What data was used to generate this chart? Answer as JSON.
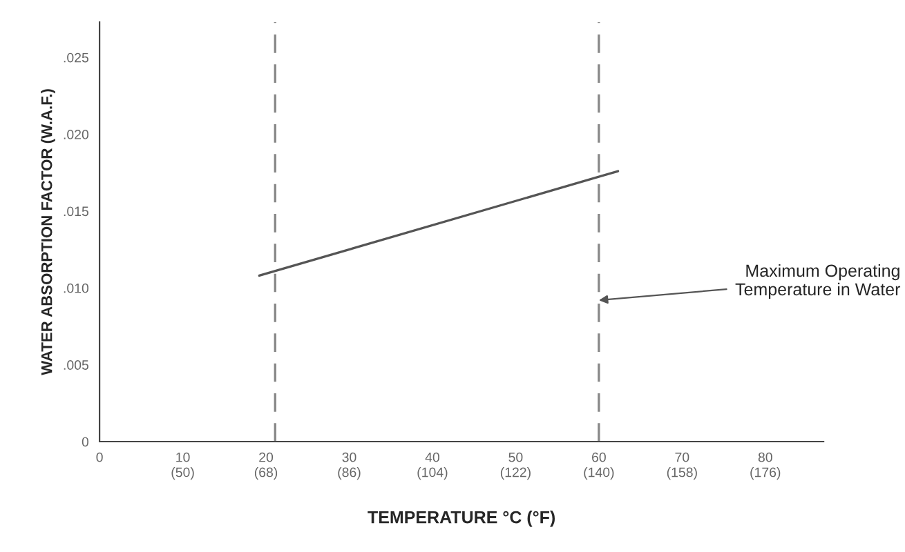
{
  "chart_data": {
    "type": "line",
    "xlabel": "TEMPERATURE °C (°F)",
    "ylabel": "WATER ABSORPTION FACTOR (W.A.F.)",
    "xlim": [
      0,
      87
    ],
    "ylim": [
      0,
      0.0273
    ],
    "xticks": [
      0,
      10,
      20,
      30,
      40,
      50,
      60,
      70,
      80
    ],
    "x2lim": [
      32,
      188.6
    ],
    "x2ticks": [
      {
        "value": 50,
        "label": "(50)"
      },
      {
        "value": 68,
        "label": "(68)"
      },
      {
        "value": 86,
        "label": "(86)"
      },
      {
        "value": 104,
        "label": "(104)"
      },
      {
        "value": 122,
        "label": "(122)"
      },
      {
        "value": 140,
        "label": "(140)"
      },
      {
        "value": 158,
        "label": "(158)"
      },
      {
        "value": 176,
        "label": "(176)"
      }
    ],
    "yticks": [
      {
        "value": 0,
        "label": "0"
      },
      {
        "value": 0.005,
        "label": ".005"
      },
      {
        "value": 0.01,
        "label": ".010"
      },
      {
        "value": 0.015,
        "label": ".015"
      },
      {
        "value": 0.02,
        "label": ".020"
      },
      {
        "value": 0.025,
        "label": ".025"
      }
    ],
    "series": [
      {
        "color": "#555555",
        "x": [
          19.2,
          62.3
        ],
        "values": [
          0.0108,
          0.0176
        ]
      }
    ],
    "ref_lines": [
      {
        "axis": "x",
        "value": 21.1,
        "color": "#888888",
        "line_style": "dashed"
      },
      {
        "axis": "x",
        "value": 60,
        "color": "#888888",
        "line_style": "dashed"
      }
    ],
    "annotations": [
      {
        "text": "Maximum Operating\nTemperature in Water",
        "x": 60,
        "y": 0.0092
      }
    ],
    "grid": false,
    "legend": false,
    "marker": "none"
  }
}
